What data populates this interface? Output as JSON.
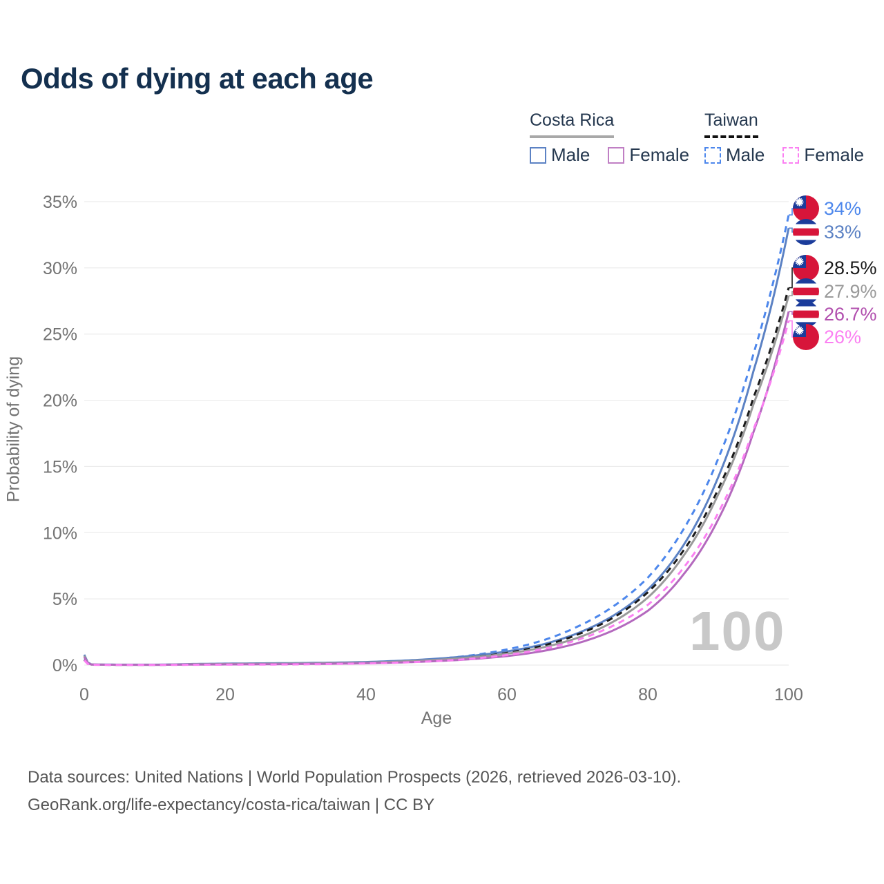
{
  "title": "Odds of dying at each age",
  "legend": {
    "groups": [
      {
        "country": "Costa Rica",
        "line_style": "solid",
        "line_color": "#a8a8a8",
        "items": [
          {
            "label": "Male",
            "color": "#5c82c4"
          },
          {
            "label": "Female",
            "color": "#c07fc4"
          }
        ]
      },
      {
        "country": "Taiwan",
        "line_style": "dashed",
        "line_color": "#111111",
        "items": [
          {
            "label": "Male",
            "color": "#4d87ec"
          },
          {
            "label": "Female",
            "color": "#fb80f2"
          }
        ]
      }
    ]
  },
  "watermark": "100",
  "axes": {
    "x_label": "Age",
    "y_label": "Probability of dying",
    "x_ticks": [
      0,
      20,
      40,
      60,
      80,
      100
    ],
    "y_ticks": [
      "0%",
      "5%",
      "10%",
      "15%",
      "20%",
      "25%",
      "30%",
      "35%"
    ]
  },
  "chart_data": {
    "type": "line",
    "title": "Odds of dying at each age",
    "xlabel": "Age",
    "ylabel": "Probability of dying",
    "xlim": [
      0,
      100
    ],
    "ylim": [
      0,
      35
    ],
    "y_unit": "%",
    "grid": "horizontal",
    "legend_position": "top-right",
    "ages": [
      0,
      1,
      5,
      10,
      15,
      20,
      25,
      30,
      35,
      40,
      45,
      50,
      55,
      60,
      65,
      70,
      75,
      80,
      85,
      90,
      95,
      100
    ],
    "series": [
      {
        "name": "Taiwan Male",
        "country": "Taiwan",
        "sex": "Male",
        "style": "dashed",
        "color": "#4d87ec",
        "end_value_pct": 34,
        "values": [
          0.42,
          0.03,
          0.02,
          0.02,
          0.04,
          0.06,
          0.07,
          0.09,
          0.13,
          0.19,
          0.29,
          0.46,
          0.74,
          1.18,
          1.85,
          2.9,
          4.4,
          6.6,
          10.2,
          15.6,
          23.5,
          34
        ]
      },
      {
        "name": "Costa Rica Male",
        "country": "Costa Rica",
        "sex": "Male",
        "style": "solid",
        "color": "#5c82c4",
        "end_value_pct": 33,
        "values": [
          0.78,
          0.05,
          0.03,
          0.03,
          0.08,
          0.11,
          0.13,
          0.15,
          0.18,
          0.23,
          0.33,
          0.48,
          0.7,
          1.03,
          1.55,
          2.4,
          3.7,
          5.7,
          9.0,
          14.2,
          22.2,
          33
        ]
      },
      {
        "name": "Taiwan Both sexes",
        "country": "Taiwan",
        "sex": "Both",
        "style": "dashed",
        "color": "#1a1a1a",
        "end_value_pct": 28.5,
        "values": [
          0.39,
          0.03,
          0.02,
          0.02,
          0.03,
          0.05,
          0.06,
          0.07,
          0.1,
          0.15,
          0.24,
          0.37,
          0.58,
          0.92,
          1.45,
          2.3,
          3.55,
          5.5,
          8.6,
          13.3,
          20.2,
          28.5
        ]
      },
      {
        "name": "Costa Rica Both sexes",
        "country": "Costa Rica",
        "sex": "Both",
        "style": "solid",
        "color": "#9a9a9a",
        "end_value_pct": 27.9,
        "values": [
          0.69,
          0.04,
          0.02,
          0.02,
          0.06,
          0.08,
          0.1,
          0.11,
          0.14,
          0.18,
          0.27,
          0.39,
          0.58,
          0.86,
          1.32,
          2.05,
          3.25,
          5.1,
          8.2,
          12.9,
          19.7,
          27.9
        ]
      },
      {
        "name": "Costa Rica Female",
        "country": "Costa Rica",
        "sex": "Female",
        "style": "solid",
        "color": "#b469be",
        "end_value_pct": 26.7,
        "values": [
          0.6,
          0.04,
          0.02,
          0.02,
          0.04,
          0.05,
          0.06,
          0.08,
          0.1,
          0.14,
          0.2,
          0.3,
          0.45,
          0.68,
          1.05,
          1.65,
          2.6,
          4.1,
          6.8,
          11.0,
          17.6,
          26.7
        ]
      },
      {
        "name": "Taiwan Female",
        "country": "Taiwan",
        "sex": "Female",
        "style": "dashed",
        "color": "#fb80f2",
        "end_value_pct": 26,
        "values": [
          0.36,
          0.02,
          0.01,
          0.01,
          0.02,
          0.03,
          0.04,
          0.05,
          0.08,
          0.12,
          0.19,
          0.3,
          0.48,
          0.76,
          1.2,
          1.9,
          2.95,
          4.55,
          7.3,
          11.5,
          17.8,
          26
        ]
      }
    ]
  },
  "end_labels": [
    {
      "text": "34%",
      "color": "#4d87ec",
      "flag": "taiwan",
      "series": "Taiwan Male"
    },
    {
      "text": "33%",
      "color": "#5c82c4",
      "flag": "costa-rica",
      "series": "Costa Rica Male"
    },
    {
      "text": "28.5%",
      "color": "#1a1a1a",
      "flag": "taiwan",
      "series": "Taiwan Both sexes"
    },
    {
      "text": "27.9%",
      "color": "#9a9a9a",
      "flag": "costa-rica",
      "series": "Costa Rica Both sexes"
    },
    {
      "text": "26.7%",
      "color": "#b14fae",
      "flag": "costa-rica",
      "series": "Costa Rica Female"
    },
    {
      "text": "26%",
      "color": "#fb80f2",
      "flag": "taiwan",
      "series": "Taiwan Female"
    }
  ],
  "footer": {
    "line1": "Data sources: United Nations | World Population Prospects (2026, retrieved 2026-03-10).",
    "line2": "GeoRank.org/life-expectancy/costa-rica/taiwan | CC BY"
  },
  "colors": {
    "title": "#14304f",
    "axis_text": "#737373",
    "grid": "#ececec",
    "watermark": "#c8c8c8",
    "footer": "#555555",
    "flag_red": "#d7153a",
    "flag_blue": "#1b3c9b"
  }
}
